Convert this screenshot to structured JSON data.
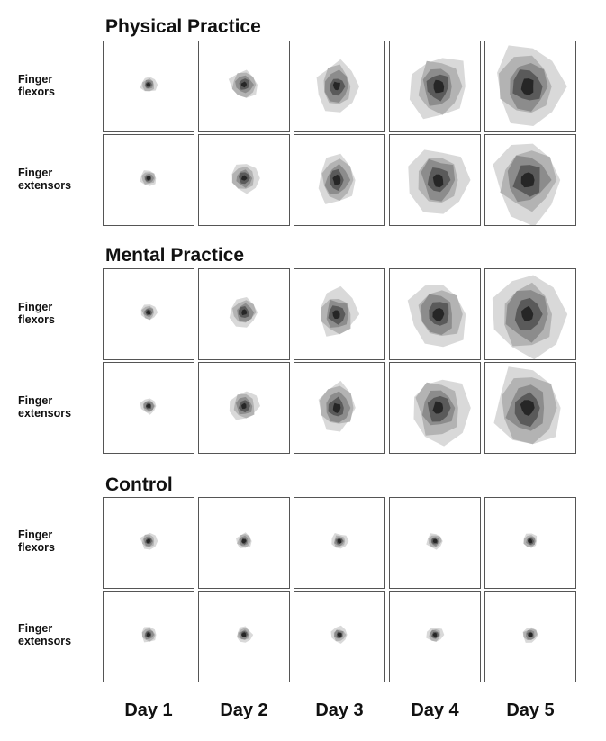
{
  "figure": {
    "groups": [
      {
        "title": "Physical Practice",
        "rows": [
          {
            "label_line1": "Finger",
            "label_line2": "flexors",
            "map_levels": [
              1,
              2,
              3,
              4,
              5
            ]
          },
          {
            "label_line1": "Finger",
            "label_line2": "extensors",
            "map_levels": [
              1,
              2,
              3,
              4,
              5
            ]
          }
        ]
      },
      {
        "title": "Mental Practice",
        "rows": [
          {
            "label_line1": "Finger",
            "label_line2": "flexors",
            "map_levels": [
              1,
              2,
              3,
              4,
              5
            ]
          },
          {
            "label_line1": "Finger",
            "label_line2": "extensors",
            "map_levels": [
              1,
              2,
              3,
              4,
              5
            ]
          }
        ]
      },
      {
        "title": "Control",
        "rows": [
          {
            "label_line1": "Finger",
            "label_line2": "flexors",
            "map_levels": [
              1,
              1,
              1,
              1,
              1
            ]
          },
          {
            "label_line1": "Finger",
            "label_line2": "extensors",
            "map_levels": [
              1,
              1,
              1,
              1,
              1
            ]
          }
        ]
      }
    ],
    "columns": [
      "Day 1",
      "Day 2",
      "Day 3",
      "Day 4",
      "Day 5"
    ]
  },
  "colors": {
    "contour_levels": [
      "#d9d9d9",
      "#b3b3b3",
      "#8c8c8c",
      "#5a5a5a",
      "#262626"
    ],
    "panel_border": "#555555"
  }
}
